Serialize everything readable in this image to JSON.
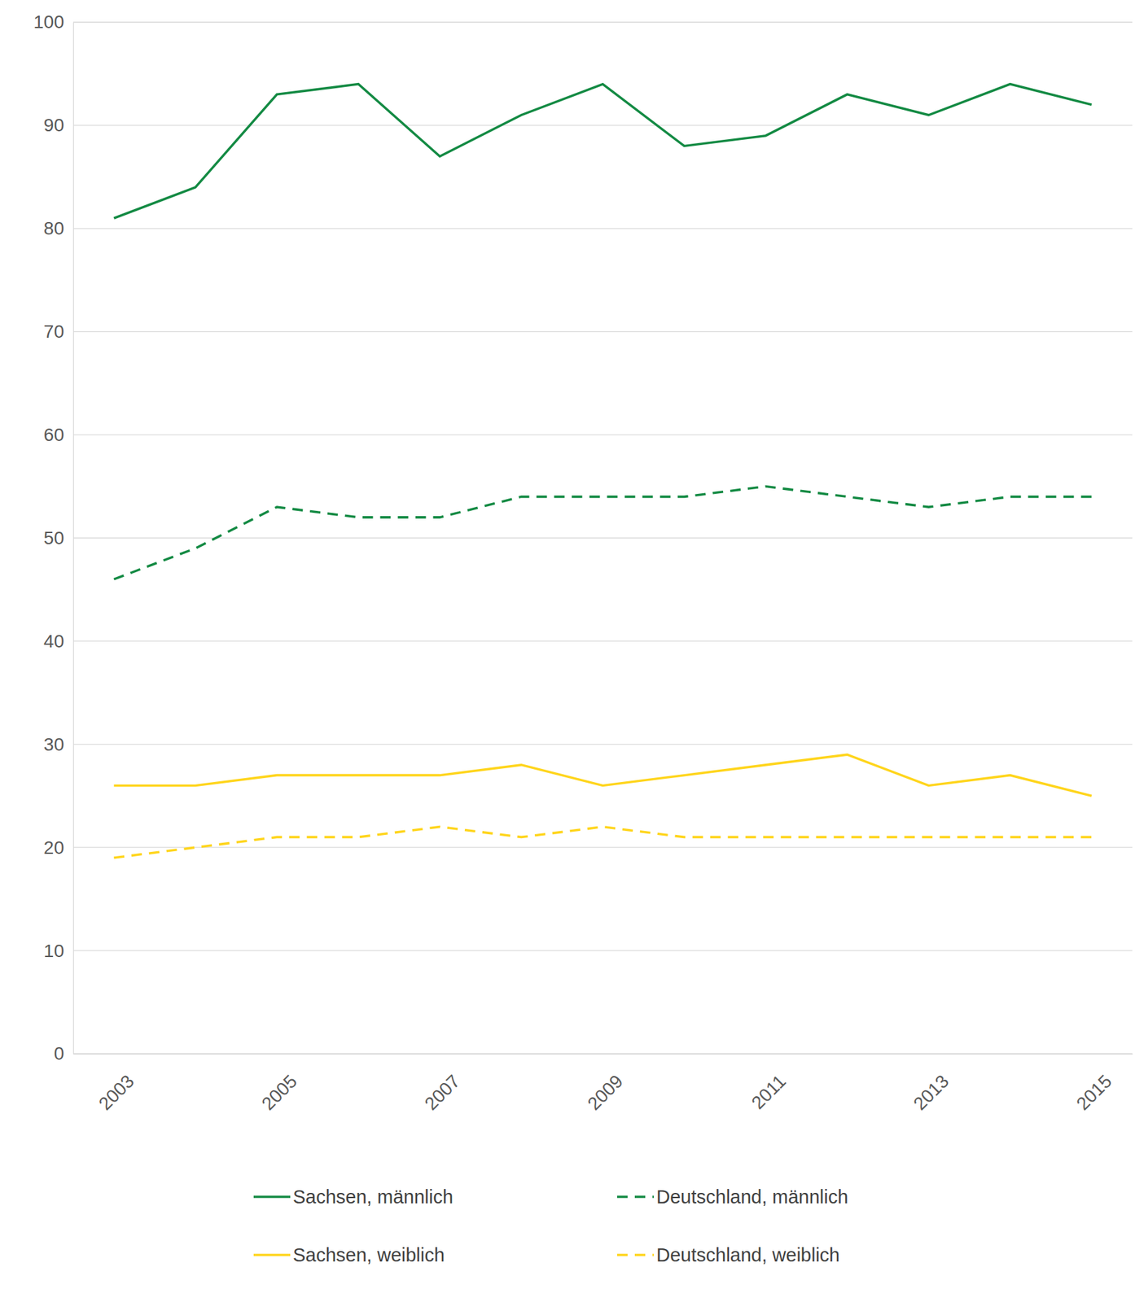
{
  "chart_data": {
    "type": "line",
    "categories": [
      "2003",
      null,
      "2005",
      null,
      "2007",
      null,
      "2009",
      null,
      "2011",
      null,
      "2013",
      null,
      "2015"
    ],
    "series": [
      {
        "name": "Sachsen, männlich",
        "color": "#138a43",
        "line_style": "solid",
        "values": [
          81,
          84,
          93,
          94,
          87,
          91,
          94,
          88,
          89,
          93,
          91,
          94,
          92
        ]
      },
      {
        "name": "Deutschland, männlich",
        "color": "#138a43",
        "line_style": "dashed",
        "values": [
          46,
          49,
          53,
          52,
          52,
          54,
          54,
          54,
          55,
          54,
          53,
          54,
          54
        ]
      },
      {
        "name": "Sachsen, weiblich",
        "color": "#ffd51c",
        "line_style": "solid",
        "values": [
          26,
          26,
          27,
          27,
          27,
          28,
          26,
          27,
          28,
          29,
          26,
          27,
          25
        ]
      },
      {
        "name": "Deutschland, weiblich",
        "color": "#ffd51c",
        "line_style": "dashed",
        "values": [
          19,
          20,
          21,
          21,
          22,
          21,
          22,
          21,
          21,
          21,
          21,
          21,
          21
        ]
      }
    ],
    "ylim": [
      0,
      100
    ],
    "yticks": [
      0,
      10,
      20,
      30,
      40,
      50,
      60,
      70,
      80,
      90,
      100
    ],
    "grid": true,
    "legend": "bottom"
  }
}
